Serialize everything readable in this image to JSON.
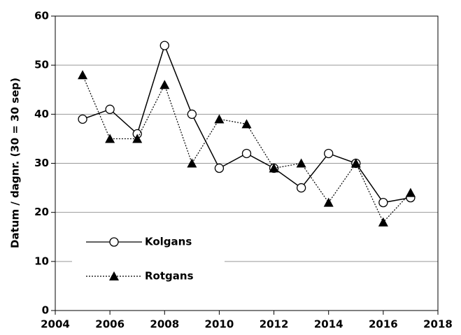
{
  "chart_data": {
    "type": "line",
    "y_label": "Datum / dagnr.  (30 = 30 sep)",
    "x": [
      2005,
      2006,
      2007,
      2008,
      2009,
      2010,
      2011,
      2012,
      2013,
      2014,
      2015,
      2016,
      2017
    ],
    "series": [
      {
        "name": "Kolgans",
        "color": "#000000",
        "dash": "solid",
        "marker": "circle",
        "values": [
          39,
          41,
          36,
          54,
          40,
          29,
          32,
          29,
          25,
          32,
          30,
          22,
          23
        ]
      },
      {
        "name": "Rotgans",
        "color": "#000000",
        "dash": "dotted",
        "marker": "triangle",
        "values": [
          48,
          35,
          35,
          46,
          30,
          39,
          38,
          29,
          30,
          22,
          30,
          18,
          24
        ]
      }
    ],
    "xlim": [
      2004,
      2018
    ],
    "xticks": [
      2004,
      2006,
      2008,
      2010,
      2012,
      2014,
      2016,
      2018
    ],
    "ylim": [
      0,
      60
    ],
    "yticks": [
      0,
      10,
      20,
      30,
      40,
      50,
      60
    ],
    "grid": true,
    "legend": "lower left"
  }
}
